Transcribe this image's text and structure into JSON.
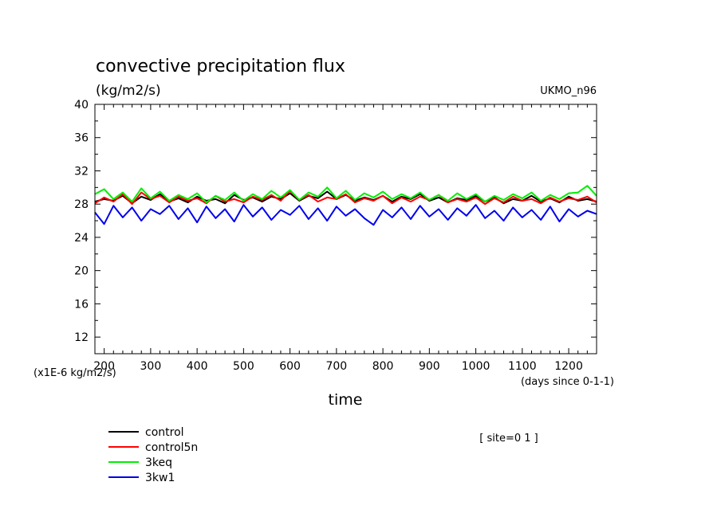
{
  "chart_data": {
    "type": "line",
    "title": "convective precipitation flux",
    "units_label": "(kg/m2/s)",
    "model_label": "UKMO_n96",
    "ylabel": "(x1E-6 kg/m2/s)",
    "xlabel": "time",
    "x_units": "(days since 0-1-1)",
    "site_label": "[ site=0 1 ]",
    "xlim": [
      180,
      1260
    ],
    "ylim": [
      10,
      40
    ],
    "x_ticks": [
      200,
      300,
      400,
      500,
      600,
      700,
      800,
      900,
      1000,
      1100,
      1200
    ],
    "x_tick_labels": [
      "200",
      "300",
      "400",
      "500",
      "600",
      "700",
      "800",
      "900",
      "1000",
      "1100",
      "1200"
    ],
    "y_ticks": [
      12,
      16,
      20,
      24,
      28,
      32,
      36,
      40
    ],
    "y_tick_labels": [
      "12",
      "16",
      "20",
      "24",
      "28",
      "32",
      "36",
      "40"
    ],
    "grid": false,
    "legend_position": "bottom-left",
    "x": [
      180,
      200,
      220,
      240,
      260,
      280,
      300,
      320,
      340,
      360,
      380,
      400,
      420,
      440,
      460,
      480,
      500,
      520,
      540,
      560,
      580,
      600,
      620,
      640,
      660,
      680,
      700,
      720,
      740,
      760,
      780,
      800,
      820,
      840,
      860,
      880,
      900,
      920,
      940,
      960,
      980,
      1000,
      1020,
      1040,
      1060,
      1080,
      1100,
      1120,
      1140,
      1160,
      1180,
      1200,
      1220,
      1240,
      1260
    ],
    "series": [
      {
        "name": "control",
        "color": "#000000",
        "values": [
          28.3,
          28.6,
          28.4,
          29.0,
          28.1,
          28.9,
          28.5,
          29.2,
          28.3,
          28.7,
          28.2,
          28.9,
          28.4,
          28.6,
          28.1,
          29.1,
          28.5,
          28.8,
          28.3,
          28.9,
          28.6,
          29.3,
          28.4,
          29.0,
          28.7,
          29.5,
          28.6,
          29.1,
          28.4,
          28.8,
          28.5,
          29.0,
          28.3,
          28.9,
          28.6,
          29.2,
          28.4,
          28.8,
          28.2,
          28.7,
          28.5,
          29.0,
          28.3,
          28.8,
          28.1,
          28.6,
          28.4,
          29.0,
          28.3,
          28.7,
          28.2,
          28.9,
          28.4,
          28.6,
          28.3
        ]
      },
      {
        "name": "control5n",
        "color": "#ff0000",
        "values": [
          28.1,
          28.8,
          28.3,
          29.2,
          28.0,
          29.4,
          28.6,
          29.0,
          28.2,
          28.9,
          28.4,
          28.7,
          28.1,
          29.0,
          28.3,
          28.6,
          28.2,
          28.9,
          28.5,
          29.1,
          28.4,
          29.6,
          28.5,
          29.1,
          28.3,
          28.8,
          28.6,
          29.2,
          28.2,
          28.7,
          28.4,
          29.0,
          28.1,
          28.8,
          28.3,
          28.9,
          28.5,
          29.1,
          28.2,
          28.6,
          28.3,
          28.8,
          28.0,
          28.7,
          28.2,
          28.9,
          28.4,
          28.6,
          28.1,
          28.8,
          28.3,
          28.7,
          28.5,
          28.9,
          28.2
        ]
      },
      {
        "name": "3keq",
        "color": "#00ee00",
        "values": [
          29.2,
          29.8,
          28.6,
          29.4,
          28.3,
          29.9,
          28.7,
          29.5,
          28.4,
          29.1,
          28.6,
          29.3,
          28.2,
          29.0,
          28.5,
          29.4,
          28.4,
          29.2,
          28.6,
          29.6,
          28.8,
          29.7,
          28.5,
          29.4,
          28.9,
          30.0,
          28.7,
          29.6,
          28.5,
          29.3,
          28.8,
          29.5,
          28.6,
          29.2,
          28.7,
          29.4,
          28.5,
          29.1,
          28.4,
          29.3,
          28.6,
          29.2,
          28.3,
          29.0,
          28.5,
          29.2,
          28.7,
          29.4,
          28.4,
          29.1,
          28.6,
          29.3,
          29.4,
          30.2,
          29.0
        ]
      },
      {
        "name": "3kw1",
        "color": "#0000ee",
        "values": [
          27.0,
          25.6,
          27.8,
          26.4,
          27.6,
          26.0,
          27.4,
          26.8,
          27.8,
          26.2,
          27.5,
          25.8,
          27.7,
          26.3,
          27.4,
          25.9,
          27.9,
          26.5,
          27.6,
          26.1,
          27.3,
          26.7,
          27.8,
          26.2,
          27.5,
          26.0,
          27.7,
          26.6,
          27.4,
          26.3,
          25.5,
          27.3,
          26.4,
          27.6,
          26.2,
          27.8,
          26.5,
          27.4,
          26.1,
          27.5,
          26.6,
          27.9,
          26.3,
          27.2,
          26.0,
          27.6,
          26.4,
          27.3,
          26.1,
          27.7,
          25.9,
          27.4,
          26.5,
          27.2,
          26.8
        ]
      }
    ]
  }
}
